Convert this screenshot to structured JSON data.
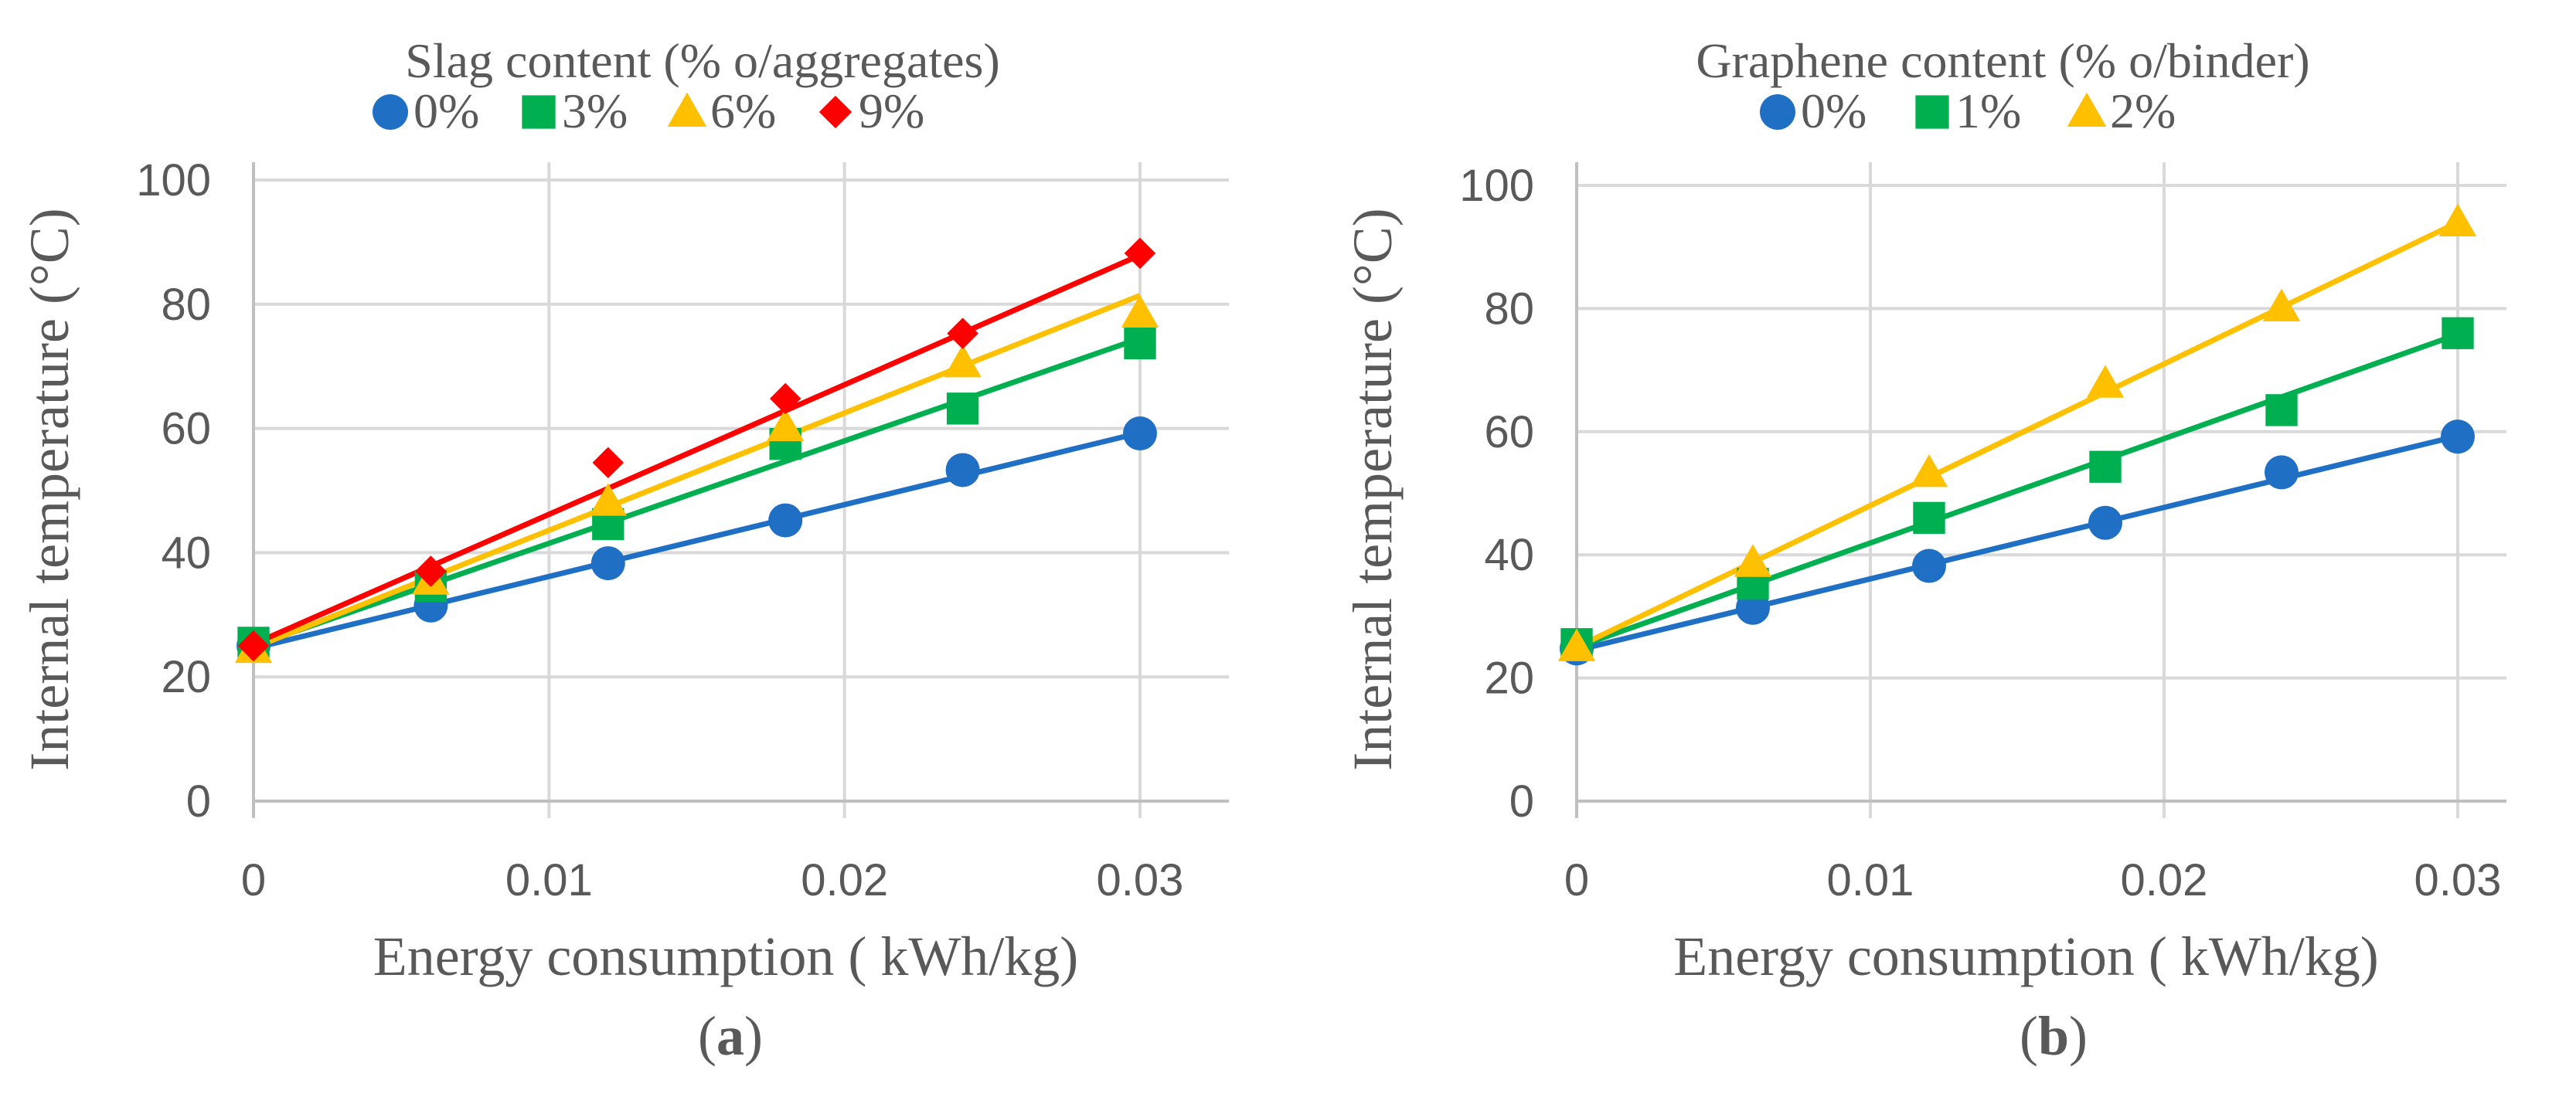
{
  "colors": {
    "text": "#595959",
    "grid": "#d9d9d9",
    "axis": "#bfbfbf",
    "series_0": "#1f6fc5",
    "series_1": "#00b050",
    "series_2": "#ffc000",
    "series_3": "#ff0000"
  },
  "chart_data": [
    {
      "id": "a",
      "type": "scatter",
      "panel_label": "a",
      "legend_title": "Slag content (% o/aggregates)",
      "xlabel": "Energy consumption ( kWh/kg)",
      "ylabel": "Internal temperature (°C)",
      "xlim": [
        0,
        0.033
      ],
      "ylim": [
        0,
        100
      ],
      "x_ticks": [
        0,
        0.01,
        0.02,
        0.03
      ],
      "x_tick_labels": [
        "0",
        "0.01",
        "0.02",
        "0.03"
      ],
      "y_ticks": [
        0,
        20,
        40,
        60,
        80,
        100
      ],
      "y_tick_labels": [
        "0",
        "20",
        "40",
        "60",
        "80",
        "100"
      ],
      "grid": true,
      "x": [
        0,
        0.006,
        0.012,
        0.018,
        0.024,
        0.03
      ],
      "series": [
        {
          "name": "0%",
          "marker": "circle",
          "color": "#1f6fc5",
          "values": [
            25,
            31.5,
            38.3,
            45.2,
            53.3,
            59.2
          ],
          "trend": [
            24.6,
            59.3
          ]
        },
        {
          "name": "3%",
          "marker": "square",
          "color": "#00b050",
          "values": [
            25.5,
            34.6,
            44.6,
            57.5,
            63.2,
            73.7
          ],
          "trend": [
            25,
            74.5
          ]
        },
        {
          "name": "6%",
          "marker": "triangle",
          "color": "#ffc000",
          "values": [
            24.5,
            35.5,
            48.2,
            60.2,
            70.5,
            78.5
          ],
          "trend": [
            24.7,
            81.4
          ]
        },
        {
          "name": "9%",
          "marker": "diamond",
          "color": "#ff0000",
          "values": [
            25,
            37,
            54.5,
            64.8,
            75.3,
            88.2
          ],
          "trend": [
            25.3,
            87.9
          ]
        }
      ]
    },
    {
      "id": "b",
      "type": "scatter",
      "panel_label": "b",
      "legend_title": "Graphene content (% o/binder)",
      "xlabel": "Energy consumption ( kWh/kg)",
      "ylabel": "Internal temperature (°C)",
      "xlim": [
        0,
        0.033
      ],
      "ylim": [
        0,
        100
      ],
      "x_ticks": [
        0,
        0.01,
        0.02,
        0.03
      ],
      "x_tick_labels": [
        "0",
        "0.01",
        "0.02",
        "0.03"
      ],
      "y_ticks": [
        0,
        20,
        40,
        60,
        80,
        100
      ],
      "y_tick_labels": [
        "0",
        "20",
        "40",
        "60",
        "80",
        "100"
      ],
      "grid": true,
      "x": [
        0,
        0.006,
        0.012,
        0.018,
        0.024,
        0.03
      ],
      "series": [
        {
          "name": "0%",
          "marker": "circle",
          "color": "#1f6fc5",
          "values": [
            24.8,
            31.4,
            38.2,
            45.2,
            53.4,
            59.2
          ],
          "trend": [
            24.5,
            59.3
          ]
        },
        {
          "name": "1%",
          "marker": "square",
          "color": "#00b050",
          "values": [
            25.5,
            35.3,
            46,
            54.3,
            63.5,
            76
          ],
          "trend": [
            25,
            75.8
          ]
        },
        {
          "name": "2%",
          "marker": "triangle",
          "color": "#ffc000",
          "values": [
            25,
            38.7,
            53.3,
            67.8,
            80.2,
            94
          ],
          "trend": [
            25,
            94
          ]
        }
      ]
    }
  ]
}
